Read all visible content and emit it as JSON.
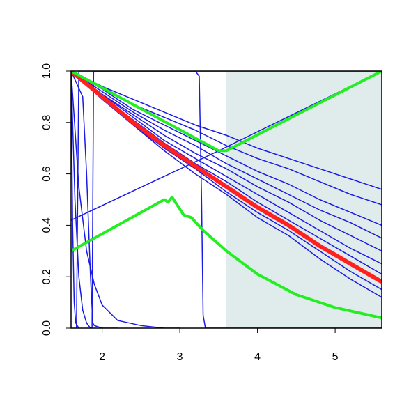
{
  "chart_data": {
    "type": "line",
    "xlim": [
      1.6,
      5.6
    ],
    "ylim": [
      0,
      1
    ],
    "xticks": [
      2,
      3,
      4,
      5
    ],
    "yticks": [
      {
        "value": 0,
        "label": "0.0"
      },
      0.2,
      0.4,
      0.6,
      0.8,
      {
        "value": 1,
        "label": "1.0"
      }
    ],
    "highlight_xlim": [
      3.6,
      5.6
    ],
    "highlight_color": "#dfeceb",
    "series": [
      {
        "color": "#1a1ae6",
        "width": 1.5,
        "x": [
          1.6,
          2.0,
          2.4,
          2.8,
          3.2,
          3.6,
          4.0,
          4.4,
          4.8,
          5.2,
          5.6
        ],
        "values": [
          1,
          0.94,
          0.89,
          0.84,
          0.79,
          0.75,
          0.7,
          0.66,
          0.62,
          0.58,
          0.54
        ]
      },
      {
        "color": "#1a1ae6",
        "width": 1.5,
        "x": [
          1.6,
          2.0,
          2.4,
          2.8,
          3.2,
          3.6,
          4.0,
          4.4,
          4.8,
          5.2,
          5.6
        ],
        "values": [
          1,
          0.94,
          0.87,
          0.82,
          0.77,
          0.71,
          0.66,
          0.62,
          0.57,
          0.52,
          0.48
        ]
      },
      {
        "color": "#1a1ae6",
        "width": 1.5,
        "x": [
          1.6,
          2.0,
          2.4,
          2.8,
          3.2,
          3.6,
          4.0,
          4.4,
          4.8,
          5.2,
          5.6
        ],
        "values": [
          1,
          0.93,
          0.85,
          0.79,
          0.73,
          0.67,
          0.61,
          0.56,
          0.5,
          0.45,
          0.4
        ]
      },
      {
        "color": "#1a1ae6",
        "width": 1.5,
        "x": [
          1.6,
          2.0,
          2.4,
          2.8,
          3.2,
          3.6,
          4.0,
          4.4,
          4.8,
          5.2,
          5.6
        ],
        "values": [
          1,
          0.92,
          0.84,
          0.77,
          0.71,
          0.64,
          0.58,
          0.52,
          0.46,
          0.41,
          0.35
        ]
      },
      {
        "color": "#1a1ae6",
        "width": 1.5,
        "x": [
          1.6,
          2.0,
          2.4,
          2.8,
          3.2,
          3.6,
          4.0,
          4.4,
          4.8,
          5.2,
          5.6
        ],
        "values": [
          1,
          0.91,
          0.83,
          0.75,
          0.68,
          0.62,
          0.55,
          0.49,
          0.42,
          0.36,
          0.3
        ]
      },
      {
        "color": "#1a1ae6",
        "width": 1.5,
        "x": [
          1.6,
          2.0,
          2.4,
          2.8,
          3.2,
          3.6,
          4.0,
          4.4,
          4.8,
          5.2,
          5.6
        ],
        "values": [
          1,
          0.91,
          0.82,
          0.73,
          0.66,
          0.59,
          0.52,
          0.45,
          0.38,
          0.31,
          0.25
        ]
      },
      {
        "color": "#1a1ae6",
        "width": 1.5,
        "x": [
          1.6,
          2.0,
          2.4,
          2.8,
          3.2,
          3.6,
          4.0,
          4.4,
          4.8,
          5.2,
          5.6
        ],
        "values": [
          1,
          0.9,
          0.81,
          0.72,
          0.64,
          0.57,
          0.49,
          0.42,
          0.35,
          0.28,
          0.21
        ]
      },
      {
        "color": "#1a1ae6",
        "width": 1.5,
        "x": [
          1.6,
          2.0,
          2.4,
          2.8,
          3.2,
          3.6,
          4.0,
          4.4,
          4.8,
          5.2,
          5.6
        ],
        "values": [
          1,
          0.9,
          0.79,
          0.7,
          0.62,
          0.53,
          0.45,
          0.38,
          0.3,
          0.22,
          0.15
        ]
      },
      {
        "color": "#1a1ae6",
        "width": 1.5,
        "x": [
          1.6,
          2.0,
          2.4,
          2.8,
          3.2,
          3.6,
          4.0,
          4.4,
          4.8,
          5.2,
          5.6
        ],
        "values": [
          1,
          0.89,
          0.79,
          0.69,
          0.6,
          0.52,
          0.43,
          0.36,
          0.27,
          0.19,
          0.12
        ]
      },
      {
        "color": "#1a1ae6",
        "width": 1.5,
        "x": [
          1.6,
          1.65,
          1.7,
          1.75,
          1.8,
          1.85
        ],
        "values": [
          1,
          0.5,
          0.2,
          0.07,
          0.02,
          0
        ]
      },
      {
        "color": "#1a1ae6",
        "width": 1.5,
        "x": [
          1.6,
          1.62,
          1.64,
          1.66,
          1.7
        ],
        "values": [
          1,
          0.4,
          0.1,
          0.02,
          0
        ]
      },
      {
        "color": "#1a1ae6",
        "width": 1.5,
        "x": [
          1.6,
          1.7,
          1.8,
          1.9,
          2.0,
          2.2,
          2.5,
          2.8,
          3.0
        ],
        "values": [
          1,
          0.55,
          0.3,
          0.17,
          0.09,
          0.03,
          0.01,
          0,
          0
        ]
      },
      {
        "color": "#1a1ae6",
        "width": 1.5,
        "x": [
          1.6,
          1.75,
          1.8,
          1.85,
          1.88,
          1.9,
          2.0,
          2.2
        ],
        "values": [
          1,
          0.9,
          0.6,
          0.2,
          0.02,
          0.01,
          0,
          0
        ]
      },
      {
        "color": "#1a1ae6",
        "width": 1.5,
        "x": [
          1.87,
          1.89,
          1.92,
          5.6
        ],
        "values": [
          0,
          1,
          1,
          1
        ]
      },
      {
        "color": "#1a1ae6",
        "width": 1.5,
        "x": [
          1.67,
          1.7,
          3.2,
          3.25,
          3.28,
          3.3,
          3.33,
          5.6
        ],
        "values": [
          0,
          1,
          1,
          0.98,
          0.5,
          0.05,
          0,
          0
        ]
      },
      {
        "color": "#1a1ae6",
        "width": 1.5,
        "x": [
          1.6,
          3.5,
          5.6
        ],
        "values": [
          0.42,
          0.69,
          1.0
        ]
      },
      {
        "color": "#ff2020",
        "width": 6,
        "x": [
          1.6,
          2.0,
          2.4,
          2.8,
          3.2,
          3.6,
          4.0,
          4.4,
          4.8,
          5.2,
          5.6
        ],
        "values": [
          1,
          0.9,
          0.8,
          0.71,
          0.63,
          0.55,
          0.47,
          0.4,
          0.32,
          0.25,
          0.18
        ]
      },
      {
        "color": "#22ee22",
        "width": 4,
        "x": [
          1.6,
          3.5,
          3.6,
          5.6
        ],
        "values": [
          1.0,
          0.69,
          0.69,
          1.0
        ]
      },
      {
        "color": "#22ee22",
        "width": 4,
        "x": [
          1.6,
          2.8,
          2.85,
          2.9,
          3.05,
          3.15,
          3.3,
          3.6,
          4.0,
          4.5,
          5.0,
          5.6
        ],
        "values": [
          0.3,
          0.5,
          0.49,
          0.51,
          0.44,
          0.43,
          0.38,
          0.3,
          0.21,
          0.13,
          0.08,
          0.04
        ]
      }
    ]
  }
}
